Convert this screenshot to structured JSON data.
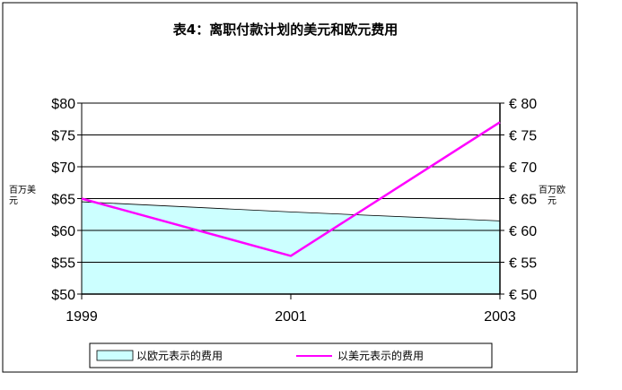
{
  "chart_data": {
    "type": "line",
    "title": "表4：离职付款计划的美元和欧元费用",
    "x": [
      "1999",
      "2001",
      "2003"
    ],
    "ylabel_left": "百万美元",
    "ylabel_right": "百万欧元",
    "ylim_left": [
      50,
      80
    ],
    "ylim_right": [
      50,
      80
    ],
    "yticks_left": [
      "$50",
      "$55",
      "$60",
      "$65",
      "$70",
      "$75",
      "$80"
    ],
    "yticks_right": [
      "€ 50",
      "€ 55",
      "€ 60",
      "€ 65",
      "€ 70",
      "€ 75",
      "€ 80"
    ],
    "grid": true,
    "legend_position": "bottom",
    "series": [
      {
        "name": "以欧元表示的费用",
        "type": "area",
        "axis": "right",
        "values": [
          64.5,
          62.9,
          61.5
        ],
        "color": "#ccffff"
      },
      {
        "name": "以美元表示的费用",
        "type": "line",
        "axis": "left",
        "values": [
          65,
          56,
          77
        ],
        "color": "#ff00ff"
      }
    ]
  }
}
